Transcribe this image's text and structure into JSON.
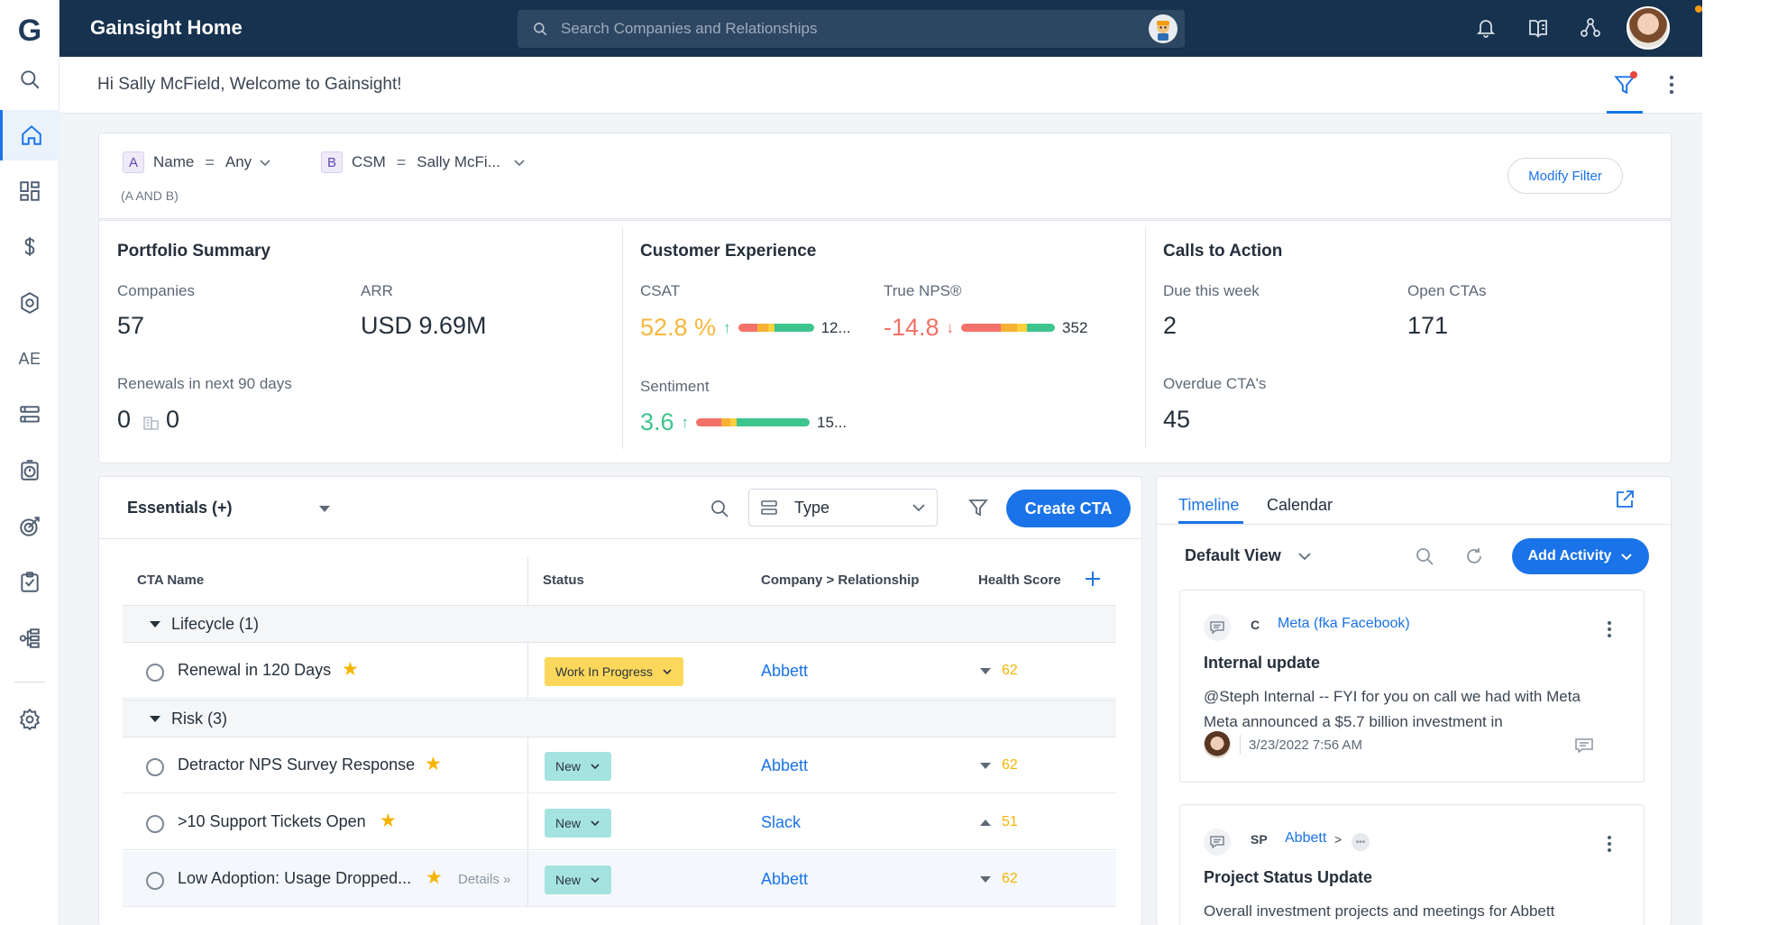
{
  "app": {
    "title": "Gainsight Home",
    "logo": "G"
  },
  "search": {
    "placeholder": "Search Companies and Relationships"
  },
  "nav": {
    "items": [
      {
        "name": "search-icon"
      },
      {
        "name": "home-icon",
        "active": true
      },
      {
        "name": "dashboard-icon"
      },
      {
        "name": "dollar-icon"
      },
      {
        "name": "gear-shield-icon"
      },
      {
        "name": "ae-text",
        "label": "AE"
      },
      {
        "name": "list-icon"
      },
      {
        "name": "timer-icon"
      },
      {
        "name": "target-icon"
      },
      {
        "name": "checklist-icon"
      },
      {
        "name": "hierarchy-icon"
      },
      {
        "name": "settings-icon"
      }
    ]
  },
  "welcome": {
    "text": "Hi Sally McField, Welcome to Gainsight!"
  },
  "filter": {
    "chips": [
      {
        "key": "A",
        "field": "Name",
        "op": "=",
        "value": "Any"
      },
      {
        "key": "B",
        "field": "CSM",
        "op": "=",
        "value": "Sally McFi..."
      }
    ],
    "logic": "(A AND B)",
    "modify_label": "Modify Filter"
  },
  "portfolio": {
    "title": "Portfolio Summary",
    "companies_label": "Companies",
    "companies_value": "57",
    "arr_label": "ARR",
    "arr_value": "USD 9.69M",
    "renewals_label": "Renewals in next 90 days",
    "renewals_value": "0",
    "renewals_accounts": "0"
  },
  "cx": {
    "title": "Customer Experience",
    "csat": {
      "label": "CSAT",
      "value": "52.8 %",
      "trend": "↑",
      "count": "12...",
      "color": "#f6b73c"
    },
    "nps": {
      "label": "True NPS®",
      "value": "-14.8",
      "trend": "↓",
      "count": "352",
      "color": "#f07167"
    },
    "sentiment": {
      "label": "Sentiment",
      "value": "3.6",
      "trend": "↑",
      "count": "15...",
      "color": "#3ec48d"
    },
    "colors": {
      "red": "#f27268",
      "orange": "#f7b135",
      "yellow": "#f9d03f",
      "green": "#3ec48d"
    }
  },
  "ctas_summary": {
    "title": "Calls to Action",
    "due_label": "Due this week",
    "due_value": "2",
    "open_label": "Open CTAs",
    "open_value": "171",
    "overdue_label": "Overdue CTA's",
    "overdue_value": "45"
  },
  "cockpit": {
    "view_label": "Essentials (+)",
    "type_label": "Type",
    "create_label": "Create CTA",
    "columns": [
      "CTA Name",
      "Status",
      "Company > Relationship",
      "Health Score"
    ],
    "groups": [
      {
        "label": "Lifecycle (1)"
      },
      {
        "label": "Risk (3)"
      }
    ],
    "rows": [
      {
        "name": "Renewal in 120 Days",
        "status": "Work In Progress",
        "status_color": "#fbd75b",
        "company": "Abbett",
        "score": "62",
        "trend": "down"
      },
      {
        "name": "Detractor NPS Survey Response",
        "status": "New",
        "status_color": "#a5e3e0",
        "company": "Abbett",
        "score": "62",
        "trend": "down"
      },
      {
        "name": ">10 Support Tickets Open",
        "status": "New",
        "status_color": "#a5e3e0",
        "company": "Slack",
        "score": "51",
        "trend": "up"
      },
      {
        "name": "Low Adoption: Usage Dropped...",
        "status": "New",
        "status_color": "#a5e3e0",
        "company": "Abbett",
        "score": "62",
        "trend": "down",
        "details": "Details »"
      }
    ]
  },
  "timeline": {
    "tabs": [
      "Timeline",
      "Calendar"
    ],
    "view_label": "Default View",
    "add_label": "Add Activity",
    "activities": [
      {
        "badge": "C",
        "company": "Meta (fka Facebook)",
        "title": "Internal update",
        "body": "@Steph Internal -- FYI for you on call we had with Meta Meta announced a $5.7 billion investment in",
        "date": "3/23/2022 7:56 AM"
      },
      {
        "badge": "SP",
        "company": "Abbett",
        "separator": ">",
        "title": "Project Status Update",
        "body": "Overall investment projects and meetings for Abbett"
      }
    ]
  }
}
